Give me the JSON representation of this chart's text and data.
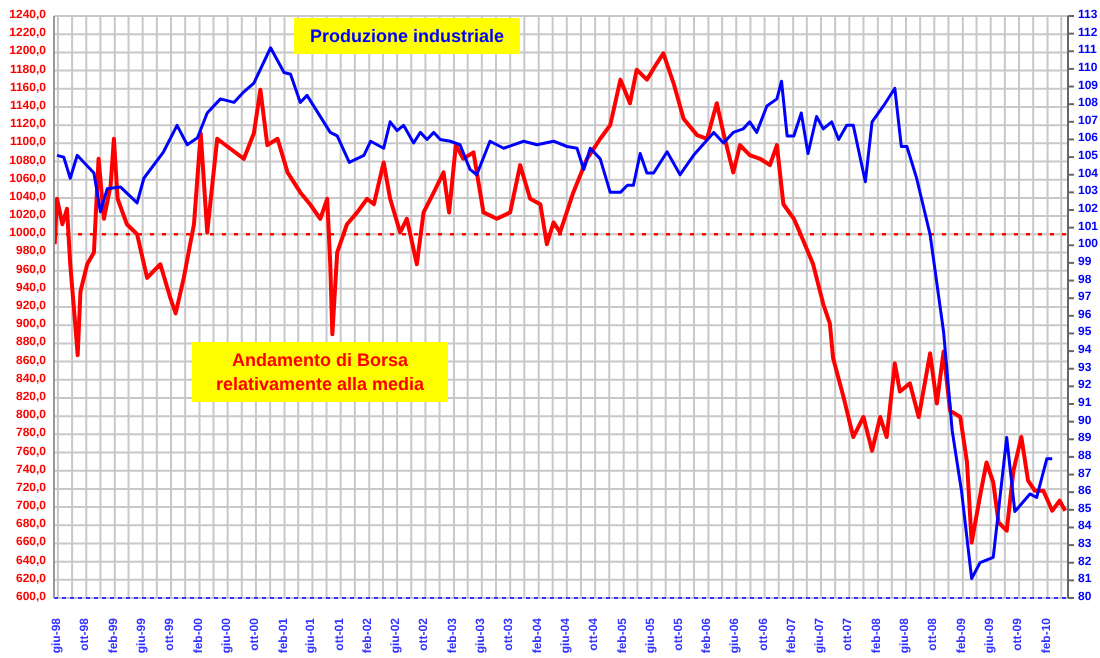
{
  "chart_data": {
    "type": "line",
    "xlim": [
      "1998-05-15",
      "2010-04-30"
    ],
    "ylim": [
      600,
      1240
    ],
    "y2lim": [
      80,
      113
    ],
    "grid": true,
    "yticks": [
      {
        "value": 600,
        "label": "600,0"
      },
      {
        "value": 620,
        "label": "620,0"
      },
      {
        "value": 640,
        "label": "640,0"
      },
      {
        "value": 660,
        "label": "660,0"
      },
      {
        "value": 680,
        "label": "680,0"
      },
      {
        "value": 700,
        "label": "700,0"
      },
      {
        "value": 720,
        "label": "720,0"
      },
      {
        "value": 740,
        "label": "740,0"
      },
      {
        "value": 760,
        "label": "760,0"
      },
      {
        "value": 780,
        "label": "780,0"
      },
      {
        "value": 800,
        "label": "800,0"
      },
      {
        "value": 820,
        "label": "820,0"
      },
      {
        "value": 840,
        "label": "840,0"
      },
      {
        "value": 860,
        "label": "860,0"
      },
      {
        "value": 880,
        "label": "880,0"
      },
      {
        "value": 900,
        "label": "900,0"
      },
      {
        "value": 920,
        "label": "920,0"
      },
      {
        "value": 940,
        "label": "940,0"
      },
      {
        "value": 960,
        "label": "960,0"
      },
      {
        "value": 980,
        "label": "980,0"
      },
      {
        "value": 1000,
        "label": "1000,0"
      },
      {
        "value": 1020,
        "label": "1020,0"
      },
      {
        "value": 1040,
        "label": "1040,0"
      },
      {
        "value": 1060,
        "label": "1060,0"
      },
      {
        "value": 1080,
        "label": "1080,0"
      },
      {
        "value": 1100,
        "label": "1100,0"
      },
      {
        "value": 1120,
        "label": "1120,0"
      },
      {
        "value": 1140,
        "label": "1140,0"
      },
      {
        "value": 1160,
        "label": "1160,0"
      },
      {
        "value": 1180,
        "label": "1180,0"
      },
      {
        "value": 1200,
        "label": "1200,0"
      },
      {
        "value": 1220,
        "label": "1220,0"
      },
      {
        "value": 1240,
        "label": "1240,0"
      }
    ],
    "y2ticks": [
      80,
      81,
      82,
      83,
      84,
      85,
      86,
      87,
      88,
      89,
      90,
      91,
      92,
      93,
      94,
      95,
      96,
      97,
      98,
      99,
      100,
      101,
      102,
      103,
      104,
      105,
      106,
      107,
      108,
      109,
      110,
      111,
      112,
      113
    ],
    "xticks": [
      {
        "value": "1998-06",
        "label": "giu-98"
      },
      {
        "value": "1998-08",
        "label": null
      },
      {
        "value": "1998-10",
        "label": "ott-98"
      },
      {
        "value": "1998-12",
        "label": null
      },
      {
        "value": "1999-02",
        "label": "feb-99"
      },
      {
        "value": "1999-04",
        "label": null
      },
      {
        "value": "1999-06",
        "label": "giu-99"
      },
      {
        "value": "1999-08",
        "label": null
      },
      {
        "value": "1999-10",
        "label": "ott-99"
      },
      {
        "value": "1999-12",
        "label": null
      },
      {
        "value": "2000-02",
        "label": "feb-00"
      },
      {
        "value": "2000-04",
        "label": null
      },
      {
        "value": "2000-06",
        "label": "giu-00"
      },
      {
        "value": "2000-08",
        "label": null
      },
      {
        "value": "2000-10",
        "label": "ott-00"
      },
      {
        "value": "2000-12",
        "label": null
      },
      {
        "value": "2001-02",
        "label": "feb-01"
      },
      {
        "value": "2001-04",
        "label": null
      },
      {
        "value": "2001-06",
        "label": "giu-01"
      },
      {
        "value": "2001-08",
        "label": null
      },
      {
        "value": "2001-10",
        "label": "ott-01"
      },
      {
        "value": "2001-12",
        "label": null
      },
      {
        "value": "2002-02",
        "label": "feb-02"
      },
      {
        "value": "2002-04",
        "label": null
      },
      {
        "value": "2002-06",
        "label": "giu-02"
      },
      {
        "value": "2002-08",
        "label": null
      },
      {
        "value": "2002-10",
        "label": "ott-02"
      },
      {
        "value": "2002-12",
        "label": null
      },
      {
        "value": "2003-02",
        "label": "feb-03"
      },
      {
        "value": "2003-04",
        "label": null
      },
      {
        "value": "2003-06",
        "label": "giu-03"
      },
      {
        "value": "2003-08",
        "label": null
      },
      {
        "value": "2003-10",
        "label": "ott-03"
      },
      {
        "value": "2003-12",
        "label": null
      },
      {
        "value": "2004-02",
        "label": "feb-04"
      },
      {
        "value": "2004-04",
        "label": null
      },
      {
        "value": "2004-06",
        "label": "giu-04"
      },
      {
        "value": "2004-08",
        "label": null
      },
      {
        "value": "2004-10",
        "label": "ott-04"
      },
      {
        "value": "2004-12",
        "label": null
      },
      {
        "value": "2005-02",
        "label": "feb-05"
      },
      {
        "value": "2005-04",
        "label": null
      },
      {
        "value": "2005-06",
        "label": "giu-05"
      },
      {
        "value": "2005-08",
        "label": null
      },
      {
        "value": "2005-10",
        "label": "ott-05"
      },
      {
        "value": "2005-12",
        "label": null
      },
      {
        "value": "2006-02",
        "label": "feb-06"
      },
      {
        "value": "2006-04",
        "label": null
      },
      {
        "value": "2006-06",
        "label": "giu-06"
      },
      {
        "value": "2006-08",
        "label": null
      },
      {
        "value": "2006-10",
        "label": "ott-06"
      },
      {
        "value": "2006-12",
        "label": null
      },
      {
        "value": "2007-02",
        "label": "feb-07"
      },
      {
        "value": "2007-04",
        "label": null
      },
      {
        "value": "2007-06",
        "label": "giu-07"
      },
      {
        "value": "2007-08",
        "label": null
      },
      {
        "value": "2007-10",
        "label": "ott-07"
      },
      {
        "value": "2007-12",
        "label": null
      },
      {
        "value": "2008-02",
        "label": "feb-08"
      },
      {
        "value": "2008-04",
        "label": null
      },
      {
        "value": "2008-06",
        "label": "giu-08"
      },
      {
        "value": "2008-08",
        "label": null
      },
      {
        "value": "2008-10",
        "label": "ott-08"
      },
      {
        "value": "2008-12",
        "label": null
      },
      {
        "value": "2009-02",
        "label": "feb-09"
      },
      {
        "value": "2009-04",
        "label": null
      },
      {
        "value": "2009-06",
        "label": "giu-09"
      },
      {
        "value": "2009-08",
        "label": null
      },
      {
        "value": "2009-10",
        "label": "ott-09"
      },
      {
        "value": "2009-12",
        "label": null
      },
      {
        "value": "2010-02",
        "label": "feb-10"
      },
      {
        "value": "2010-04",
        "label": null
      }
    ],
    "ref_lines": [
      {
        "axis": "y",
        "value": 1000,
        "color": "#ff0000",
        "line_style": "dotted"
      }
    ],
    "series": [
      {
        "name": "Andamento di Borsa relativamente alla media",
        "color": "#ff0000",
        "x": [
          "1998-05-18",
          "1998-05-28",
          "1998-06-20",
          "1998-07-10",
          "1998-07-24",
          "1998-08-17",
          "1998-08-25",
          "1998-09-06",
          "1998-10-05",
          "1998-11-03",
          "1998-11-23",
          "1998-12-16",
          "1999-01-14",
          "1999-01-28",
          "1999-02-13",
          "1999-03-25",
          "1999-05-08",
          "1999-06-20",
          "1999-08-16",
          "1999-09-28",
          "1999-10-21",
          "1999-11-25",
          "2000-01-08",
          "2000-02-06",
          "2000-03-05",
          "2000-04-17",
          "2000-06-13",
          "2000-08-10",
          "2000-09-22",
          "2000-10-20",
          "2000-11-19",
          "2001-01-02",
          "2001-02-14",
          "2001-04-10",
          "2001-05-22",
          "2001-07-05",
          "2001-08-04",
          "2001-08-17",
          "2001-08-26",
          "2001-09-16",
          "2001-10-28",
          "2001-12-11",
          "2002-01-23",
          "2002-02-21",
          "2002-04-04",
          "2002-05-02",
          "2002-06-14",
          "2002-07-13",
          "2002-08-25",
          "2002-09-23",
          "2002-11-06",
          "2002-12-18",
          "2003-01-11",
          "2003-02-09",
          "2003-03-13",
          "2003-04-26",
          "2003-06-08",
          "2003-08-05",
          "2003-10-01",
          "2003-11-13",
          "2003-12-26",
          "2004-02-08",
          "2004-03-07",
          "2004-04-05",
          "2004-05-03",
          "2004-06-29",
          "2004-08-27",
          "2004-10-23",
          "2004-12-05",
          "2005-01-18",
          "2005-02-28",
          "2005-03-29",
          "2005-05-12",
          "2005-06-24",
          "2005-07-22",
          "2005-09-04",
          "2005-10-17",
          "2005-12-14",
          "2006-01-26",
          "2006-03-09",
          "2006-04-07",
          "2006-05-19",
          "2006-06-17",
          "2006-07-29",
          "2006-09-12",
          "2006-10-24",
          "2006-11-23",
          "2006-12-21",
          "2007-02-04",
          "2007-03-02",
          "2007-04-28",
          "2007-06-11",
          "2007-07-09",
          "2007-07-23",
          "2007-09-06",
          "2007-10-18",
          "2007-12-01",
          "2008-01-07",
          "2008-02-11",
          "2008-03-10",
          "2008-04-14",
          "2008-05-06",
          "2008-06-18",
          "2008-07-26",
          "2008-09-13",
          "2008-10-12",
          "2008-11-10",
          "2008-12-08",
          "2009-01-21",
          "2009-02-19",
          "2009-03-11",
          "2009-04-16",
          "2009-05-14",
          "2009-06-12",
          "2009-07-05",
          "2009-08-09",
          "2009-09-07",
          "2009-10-11",
          "2009-11-09",
          "2009-12-08",
          "2010-01-14",
          "2010-02-21",
          "2010-03-25",
          "2010-04-18"
        ],
        "values": [
          989,
          1039,
          1011,
          1028,
          967,
          893,
          867,
          937,
          967,
          980,
          1083,
          1017,
          1054,
          1105,
          1039,
          1011,
          1000,
          952,
          967,
          930,
          913,
          952,
          1011,
          1111,
          1002,
          1105,
          1094,
          1083,
          1111,
          1159,
          1098,
          1105,
          1068,
          1046,
          1033,
          1017,
          1039,
          967,
          890,
          980,
          1011,
          1024,
          1039,
          1033,
          1079,
          1039,
          1002,
          1017,
          967,
          1024,
          1046,
          1068,
          1024,
          1098,
          1083,
          1090,
          1024,
          1017,
          1024,
          1076,
          1039,
          1033,
          989,
          1013,
          1002,
          1046,
          1083,
          1105,
          1120,
          1170,
          1144,
          1181,
          1170,
          1188,
          1199,
          1166,
          1127,
          1109,
          1105,
          1144,
          1111,
          1068,
          1098,
          1087,
          1083,
          1076,
          1098,
          1033,
          1017,
          1002,
          967,
          923,
          902,
          864,
          821,
          777,
          799,
          762,
          799,
          777,
          858,
          827,
          836,
          799,
          869,
          814,
          871,
          806,
          799,
          749,
          661,
          712,
          749,
          727,
          683,
          674,
          740,
          777,
          729,
          718,
          718,
          696,
          707,
          696
        ]
      },
      {
        "name": "Produzione industriale",
        "color": "#0000ff",
        "axis": "y2",
        "x": [
          "1998-05-28",
          "1998-06-26",
          "1998-07-24",
          "1998-08-23",
          "1998-11-03",
          "1998-12-01",
          "1998-12-30",
          "1999-02-26",
          "1999-05-08",
          "1999-06-06",
          "1999-08-30",
          "1999-10-27",
          "1999-12-10",
          "2000-01-23",
          "2000-03-05",
          "2000-05-01",
          "2000-06-28",
          "2000-08-10",
          "2000-09-22",
          "2000-12-03",
          "2001-01-30",
          "2001-02-27",
          "2001-04-10",
          "2001-05-09",
          "2001-08-17",
          "2001-09-16",
          "2001-11-07",
          "2002-01-09",
          "2002-02-07",
          "2002-04-04",
          "2002-05-02",
          "2002-06-01",
          "2002-06-29",
          "2002-08-11",
          "2002-09-09",
          "2002-10-08",
          "2002-11-06",
          "2002-12-04",
          "2003-01-16",
          "2003-02-27",
          "2003-04-11",
          "2003-05-10",
          "2003-07-06",
          "2003-09-03",
          "2003-11-28",
          "2004-01-25",
          "2004-04-05",
          "2004-06-02",
          "2004-07-15",
          "2004-08-13",
          "2004-09-10",
          "2004-10-23",
          "2004-12-05",
          "2005-01-18",
          "2005-02-17",
          "2005-03-15",
          "2005-04-13",
          "2005-05-12",
          "2005-06-10",
          "2005-08-07",
          "2005-10-02",
          "2005-11-29",
          "2006-02-24",
          "2006-04-07",
          "2006-05-19",
          "2006-07-01",
          "2006-07-29",
          "2006-08-28",
          "2006-10-11",
          "2006-11-23",
          "2006-12-13",
          "2007-01-06",
          "2007-02-04",
          "2007-03-08",
          "2007-04-06",
          "2007-05-13",
          "2007-06-11",
          "2007-07-17",
          "2007-08-16",
          "2007-09-20",
          "2007-10-18",
          "2007-12-09",
          "2008-01-07",
          "2008-02-25",
          "2008-04-14",
          "2008-05-12",
          "2008-06-05",
          "2008-07-17",
          "2008-09-13",
          "2008-11-10",
          "2008-12-17",
          "2009-01-26",
          "2009-03-11",
          "2009-04-16",
          "2009-06-12",
          "2009-08-09",
          "2009-09-13",
          "2009-11-17",
          "2009-12-16",
          "2010-01-29",
          "2010-02-21"
        ],
        "values": [
          105.1,
          105.0,
          103.8,
          105.1,
          104.1,
          101.9,
          103.2,
          103.3,
          102.4,
          103.8,
          105.3,
          106.8,
          105.7,
          106.1,
          107.5,
          108.3,
          108.1,
          108.7,
          109.2,
          111.2,
          109.8,
          109.7,
          108.1,
          108.5,
          106.4,
          106.2,
          104.7,
          105.1,
          105.9,
          105.5,
          107.0,
          106.5,
          106.8,
          105.8,
          106.4,
          106.0,
          106.4,
          106.0,
          105.9,
          105.7,
          104.3,
          104.0,
          105.9,
          105.5,
          105.9,
          105.7,
          105.9,
          105.6,
          105.5,
          104.3,
          105.5,
          104.9,
          103.0,
          103.0,
          103.4,
          103.4,
          105.2,
          104.1,
          104.1,
          105.3,
          104.0,
          105.1,
          106.4,
          105.8,
          106.4,
          106.6,
          107.0,
          106.4,
          107.9,
          108.3,
          109.3,
          106.2,
          106.2,
          107.5,
          105.2,
          107.3,
          106.6,
          107.0,
          106.0,
          106.8,
          106.8,
          103.6,
          107.0,
          107.9,
          108.9,
          105.6,
          105.6,
          103.8,
          100.6,
          95.1,
          89.5,
          86.1,
          81.1,
          82.0,
          82.3,
          89.1,
          84.9,
          85.9,
          85.7,
          87.9,
          87.9
        ]
      }
    ]
  }
}
